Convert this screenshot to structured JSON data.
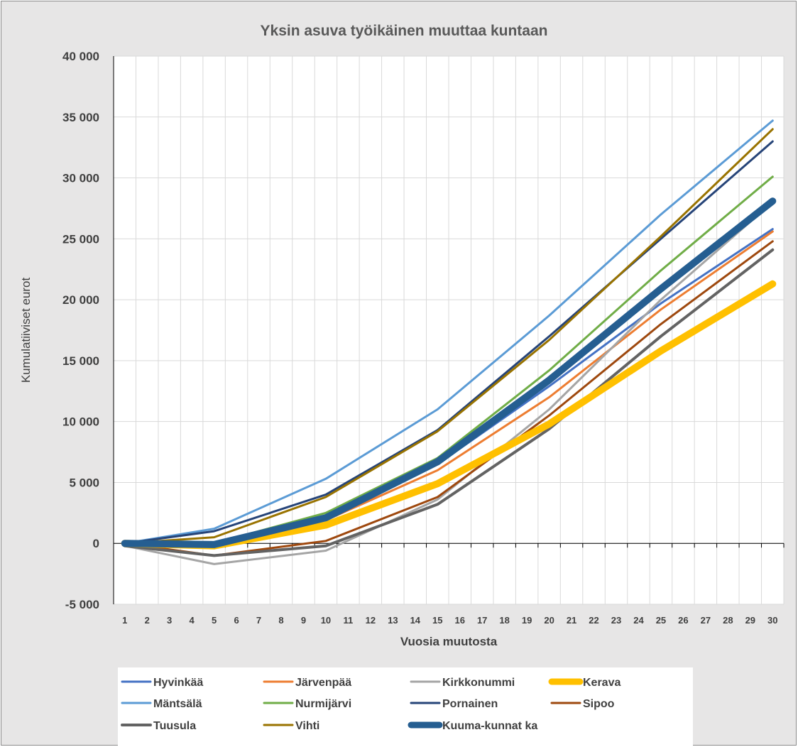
{
  "chart_data": {
    "type": "line",
    "title": "Yksin asuva työikäinen muuttaa kuntaan",
    "xlabel": "Vuosia muutosta",
    "ylabel": "Kumulatiiviset eurot",
    "categories": [
      "1",
      "2",
      "3",
      "4",
      "5",
      "6",
      "7",
      "8",
      "9",
      "10",
      "11",
      "12",
      "13",
      "14",
      "15",
      "16",
      "17",
      "18",
      "19",
      "20",
      "21",
      "22",
      "23",
      "24",
      "25",
      "26",
      "27",
      "28",
      "29",
      "30"
    ],
    "ylim": [
      -5000,
      40000
    ],
    "yticks": [
      -5000,
      0,
      5000,
      10000,
      15000,
      20000,
      25000,
      30000,
      35000,
      40000
    ],
    "ytick_labels": [
      "-5 000",
      "0",
      "5 000",
      "10 000",
      "15 000",
      "20 000",
      "25 000",
      "30 000",
      "35 000",
      "40 000"
    ],
    "grid": true,
    "legend_position": "bottom",
    "series": [
      {
        "name": "Hyvinkää",
        "color": "#4472c4",
        "width": 3,
        "points": [
          [
            1,
            0
          ],
          [
            5,
            0
          ],
          [
            10,
            2300
          ],
          [
            15,
            6500
          ],
          [
            20,
            12900
          ],
          [
            25,
            19700
          ],
          [
            30,
            25800
          ]
        ]
      },
      {
        "name": "Järvenpää",
        "color": "#ed7d31",
        "width": 3,
        "points": [
          [
            1,
            0
          ],
          [
            5,
            -100
          ],
          [
            10,
            1900
          ],
          [
            15,
            6000
          ],
          [
            20,
            12000
          ],
          [
            25,
            19200
          ],
          [
            30,
            25600
          ]
        ]
      },
      {
        "name": "Kirkkonummi",
        "color": "#a5a5a5",
        "width": 3,
        "points": [
          [
            1,
            -200
          ],
          [
            5,
            -1700
          ],
          [
            10,
            -600
          ],
          [
            15,
            3600
          ],
          [
            20,
            11000
          ],
          [
            25,
            20000
          ],
          [
            30,
            28000
          ]
        ]
      },
      {
        "name": "Kerava",
        "color": "#ffc000",
        "width": 10,
        "points": [
          [
            1,
            0
          ],
          [
            5,
            -200
          ],
          [
            10,
            1500
          ],
          [
            15,
            4900
          ],
          [
            20,
            9800
          ],
          [
            25,
            15800
          ],
          [
            30,
            21300
          ]
        ]
      },
      {
        "name": "Mäntsälä",
        "color": "#5b9bd5",
        "width": 3,
        "points": [
          [
            1,
            0
          ],
          [
            5,
            1200
          ],
          [
            10,
            5300
          ],
          [
            15,
            11000
          ],
          [
            20,
            18700
          ],
          [
            25,
            27000
          ],
          [
            30,
            34700
          ]
        ]
      },
      {
        "name": "Nurmijärvi",
        "color": "#70ad47",
        "width": 3,
        "points": [
          [
            1,
            0
          ],
          [
            5,
            0
          ],
          [
            10,
            2500
          ],
          [
            15,
            7000
          ],
          [
            20,
            14200
          ],
          [
            25,
            22400
          ],
          [
            30,
            30100
          ]
        ]
      },
      {
        "name": "Pornainen",
        "color": "#264478",
        "width": 3,
        "points": [
          [
            1,
            0
          ],
          [
            5,
            1000
          ],
          [
            10,
            4000
          ],
          [
            15,
            9300
          ],
          [
            20,
            17000
          ],
          [
            25,
            25000
          ],
          [
            30,
            33000
          ]
        ]
      },
      {
        "name": "Sipoo",
        "color": "#9e480e",
        "width": 3,
        "points": [
          [
            1,
            0
          ],
          [
            5,
            -1000
          ],
          [
            10,
            200
          ],
          [
            15,
            3800
          ],
          [
            20,
            10500
          ],
          [
            25,
            18000
          ],
          [
            30,
            24800
          ]
        ]
      },
      {
        "name": "Tuusula",
        "color": "#636363",
        "width": 4,
        "points": [
          [
            1,
            -200
          ],
          [
            5,
            -1000
          ],
          [
            10,
            -200
          ],
          [
            15,
            3200
          ],
          [
            20,
            9400
          ],
          [
            25,
            17000
          ],
          [
            30,
            24100
          ]
        ]
      },
      {
        "name": "Vihti",
        "color": "#997300",
        "width": 3,
        "points": [
          [
            1,
            0
          ],
          [
            5,
            500
          ],
          [
            10,
            3800
          ],
          [
            15,
            9200
          ],
          [
            20,
            16700
          ],
          [
            25,
            25200
          ],
          [
            30,
            34000
          ]
        ]
      },
      {
        "name": "Kuuma-kunnat ka",
        "color": "#255e91",
        "width": 10,
        "points": [
          [
            1,
            0
          ],
          [
            5,
            -100
          ],
          [
            10,
            2100
          ],
          [
            15,
            6700
          ],
          [
            20,
            13400
          ],
          [
            25,
            20900
          ],
          [
            30,
            28100
          ]
        ]
      }
    ]
  }
}
